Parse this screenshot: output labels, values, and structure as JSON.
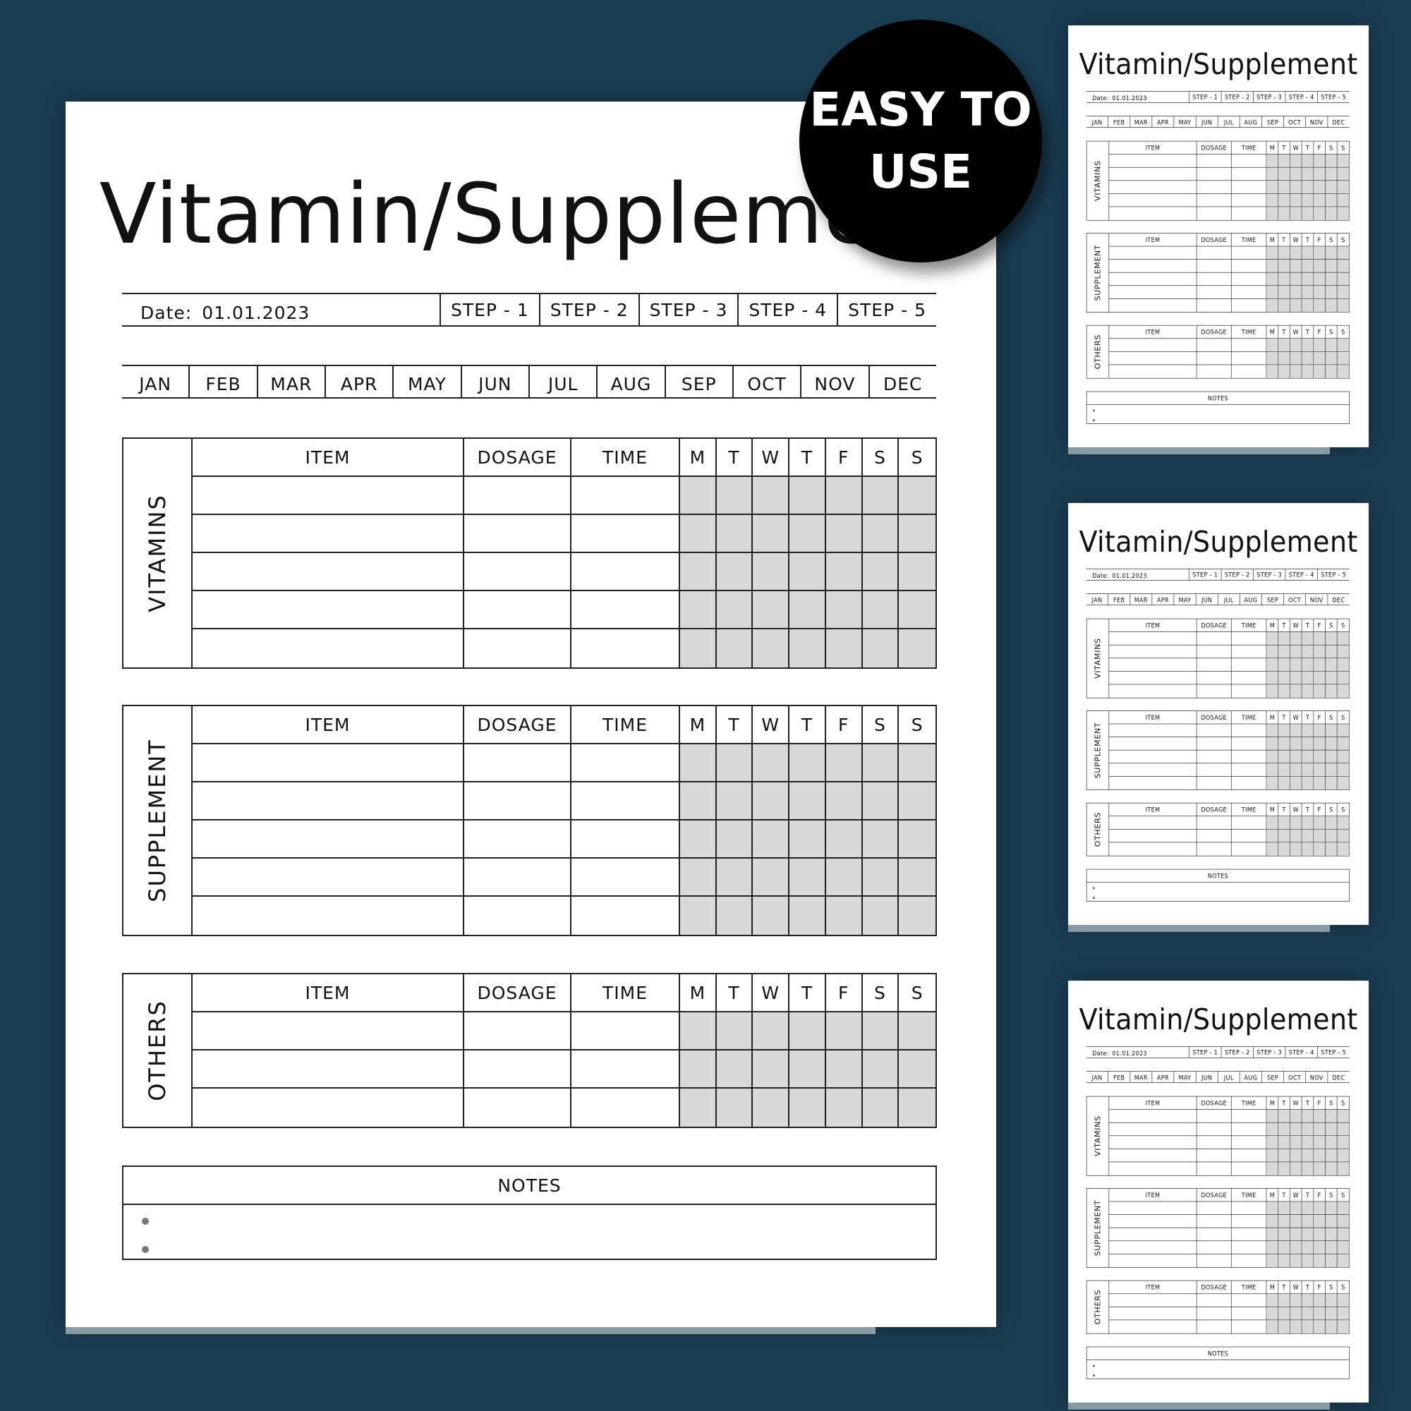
{
  "title": "Vitamin/Supplement",
  "date_label": "Date:",
  "date_value": "01.01.2023",
  "steps": [
    "STEP - 1",
    "STEP - 2",
    "STEP - 3",
    "STEP - 4",
    "STEP - 5"
  ],
  "months": [
    "JAN",
    "FEB",
    "MAR",
    "APR",
    "MAY",
    "JUN",
    "JUL",
    "AUG",
    "SEP",
    "OCT",
    "NOV",
    "DEC"
  ],
  "columns": [
    "ITEM",
    "DOSAGE",
    "TIME"
  ],
  "days": [
    "M",
    "T",
    "W",
    "T",
    "F",
    "S",
    "S"
  ],
  "sections": [
    {
      "label": "VITAMINS",
      "rows": 5
    },
    {
      "label": "SUPPLEMENT",
      "rows": 5
    },
    {
      "label": "OTHERS",
      "rows": 3
    }
  ],
  "notes": {
    "label": "NOTES",
    "bullets": 2
  },
  "badge": {
    "line1": "EASY TO",
    "line2": "USE"
  },
  "colors": {
    "background": "#1b3d52",
    "day_cell": "#d9d9d9",
    "badge": "#000000"
  }
}
